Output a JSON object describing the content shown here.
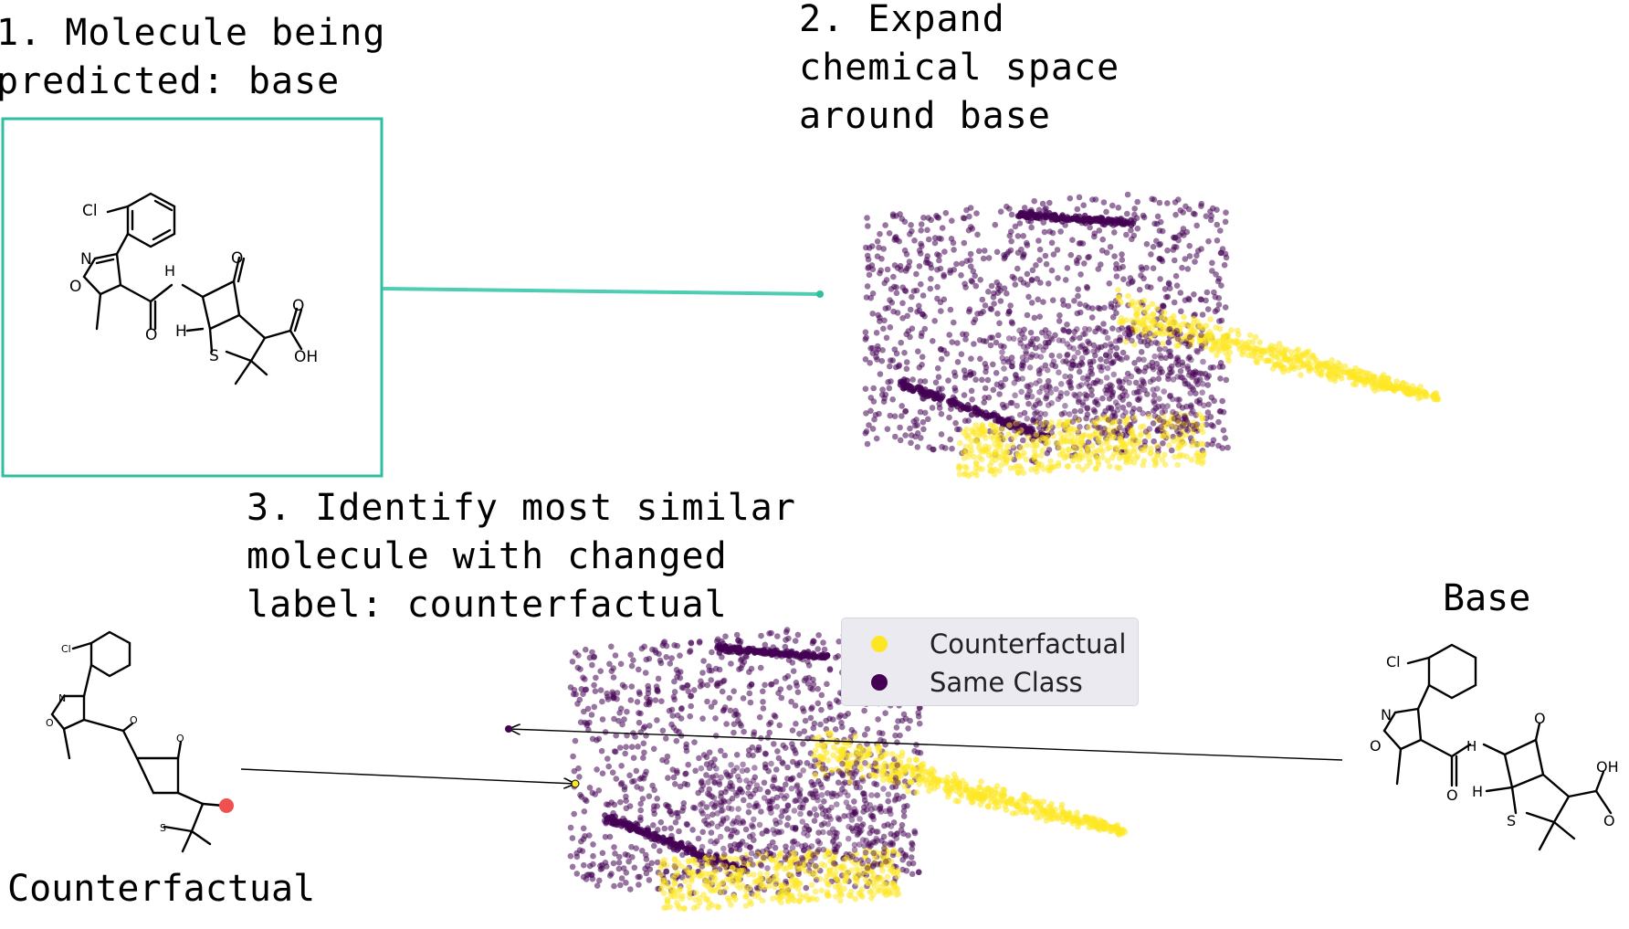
{
  "steps": {
    "step1": [
      "1. Molecule being",
      "predicted: base"
    ],
    "step2": [
      "2. Expand",
      "chemical space",
      "around base"
    ],
    "step3": [
      "3. Identify most similar",
      "molecule with changed",
      "label: counterfactual"
    ]
  },
  "captions": {
    "counterfactual": "Counterfactual",
    "base": "Base"
  },
  "legend": {
    "items": [
      {
        "label": "Counterfactual",
        "color": "#fde725"
      },
      {
        "label": "Same Class",
        "color": "#440154"
      }
    ]
  },
  "atom_labels": {
    "cl": "Cl",
    "n": "N",
    "o": "O",
    "nh": "H",
    "h": "H",
    "s": "S",
    "oh": "OH"
  },
  "colors": {
    "box_border": "#2fbf9f",
    "counterfactual": "#fde725",
    "same_class": "#440154",
    "highlight_atom": "#f05050"
  }
}
